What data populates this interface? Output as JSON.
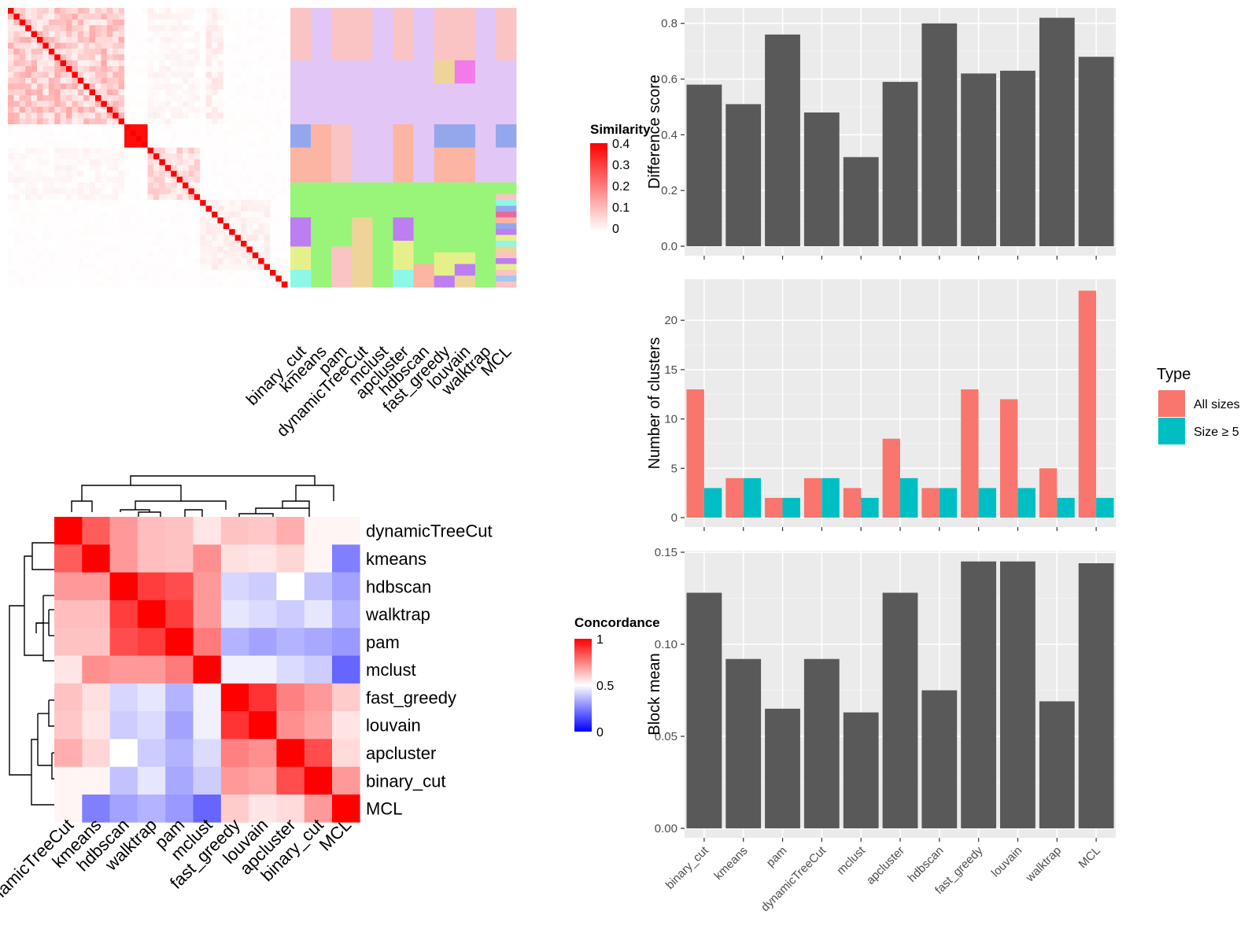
{
  "chart_data": [
    {
      "type": "heatmap",
      "panel": "similarity-and-partitions",
      "methods": [
        "binary_cut",
        "kmeans",
        "pam",
        "dynamicTreeCut",
        "mclust",
        "apcluster",
        "hdbscan",
        "fast_greedy",
        "louvain",
        "walktrap",
        "MCL"
      ],
      "legend": {
        "title": "Similarity",
        "ticks": [
          "0.4",
          "0.3",
          "0.2",
          "0.1",
          "0"
        ]
      },
      "colors": {
        "low": "#ffffff",
        "high": "#ff0000"
      }
    },
    {
      "type": "heatmap",
      "panel": "concordance",
      "rows": [
        "dynamicTreeCut",
        "kmeans",
        "hdbscan",
        "walktrap",
        "pam",
        "mclust",
        "fast_greedy",
        "louvain",
        "apcluster",
        "binary_cut",
        "MCL"
      ],
      "cols": [
        "dynamicTreeCut",
        "kmeans",
        "hdbscan",
        "walktrap",
        "pam",
        "mclust",
        "fast_greedy",
        "louvain",
        "apcluster",
        "binary_cut",
        "MCL"
      ],
      "values": [
        [
          1.0,
          0.82,
          0.7,
          0.63,
          0.62,
          0.55,
          0.62,
          0.61,
          0.66,
          0.52,
          0.52
        ],
        [
          0.82,
          1.0,
          0.7,
          0.63,
          0.62,
          0.72,
          0.56,
          0.55,
          0.58,
          0.52,
          0.25
        ],
        [
          0.7,
          0.7,
          1.0,
          0.88,
          0.85,
          0.7,
          0.42,
          0.4,
          0.5,
          0.38,
          0.32
        ],
        [
          0.63,
          0.63,
          0.88,
          1.0,
          0.88,
          0.7,
          0.45,
          0.43,
          0.4,
          0.45,
          0.35
        ],
        [
          0.62,
          0.62,
          0.85,
          0.88,
          1.0,
          0.76,
          0.35,
          0.32,
          0.35,
          0.33,
          0.3
        ],
        [
          0.55,
          0.72,
          0.7,
          0.7,
          0.76,
          1.0,
          0.47,
          0.47,
          0.43,
          0.4,
          0.2
        ],
        [
          0.62,
          0.56,
          0.42,
          0.45,
          0.35,
          0.47,
          1.0,
          0.9,
          0.75,
          0.7,
          0.6
        ],
        [
          0.61,
          0.55,
          0.4,
          0.43,
          0.32,
          0.47,
          0.9,
          1.0,
          0.72,
          0.68,
          0.55
        ],
        [
          0.66,
          0.58,
          0.5,
          0.4,
          0.35,
          0.43,
          0.75,
          0.72,
          1.0,
          0.85,
          0.57
        ],
        [
          0.52,
          0.52,
          0.38,
          0.45,
          0.33,
          0.4,
          0.7,
          0.68,
          0.85,
          1.0,
          0.7
        ],
        [
          0.52,
          0.25,
          0.32,
          0.35,
          0.3,
          0.2,
          0.6,
          0.55,
          0.57,
          0.7,
          1.0
        ]
      ],
      "legend": {
        "title": "Concordance",
        "ticks": [
          "1",
          "0.5",
          "0"
        ]
      },
      "colors": {
        "low": "#0000ff",
        "mid": "#ffffff",
        "high": "#ff0000"
      }
    },
    {
      "type": "bar",
      "categories": [
        "binary_cut",
        "kmeans",
        "pam",
        "dynamicTreeCut",
        "mclust",
        "apcluster",
        "hdbscan",
        "fast_greedy",
        "louvain",
        "walktrap",
        "MCL"
      ],
      "ylabel": "Difference score",
      "ylim": [
        0,
        0.85
      ],
      "yticks": [
        "0.0",
        "0.2",
        "0.4",
        "0.6",
        "0.8"
      ],
      "values": [
        0.58,
        0.51,
        0.76,
        0.48,
        0.32,
        0.59,
        0.8,
        0.62,
        0.63,
        0.82,
        0.68
      ],
      "bar_color": "#595959"
    },
    {
      "type": "bar",
      "categories": [
        "binary_cut",
        "kmeans",
        "pam",
        "dynamicTreeCut",
        "mclust",
        "apcluster",
        "hdbscan",
        "fast_greedy",
        "louvain",
        "walktrap",
        "MCL"
      ],
      "ylabel": "Number of clusters",
      "ylim": [
        0,
        24
      ],
      "yticks": [
        "0",
        "5",
        "10",
        "15",
        "20"
      ],
      "series": [
        {
          "name": "All sizes",
          "values": [
            13,
            4,
            2,
            4,
            3,
            8,
            3,
            13,
            12,
            5,
            23
          ],
          "color": "#f8766d"
        },
        {
          "name": "Size ≥ 5",
          "values": [
            3,
            4,
            2,
            4,
            2,
            4,
            3,
            3,
            3,
            2,
            2
          ],
          "color": "#00bfc4"
        }
      ],
      "legend": {
        "title": "Type",
        "placement": "right"
      }
    },
    {
      "type": "bar",
      "categories": [
        "binary_cut",
        "kmeans",
        "pam",
        "dynamicTreeCut",
        "mclust",
        "apcluster",
        "hdbscan",
        "fast_greedy",
        "louvain",
        "walktrap",
        "MCL"
      ],
      "ylabel": "Block mean",
      "ylim": [
        0,
        0.15
      ],
      "yticks": [
        "0.00",
        "0.05",
        "0.10",
        "0.15"
      ],
      "values": [
        0.128,
        0.092,
        0.065,
        0.092,
        0.063,
        0.128,
        0.075,
        0.145,
        0.145,
        0.069,
        0.144
      ],
      "bar_color": "#595959"
    }
  ]
}
